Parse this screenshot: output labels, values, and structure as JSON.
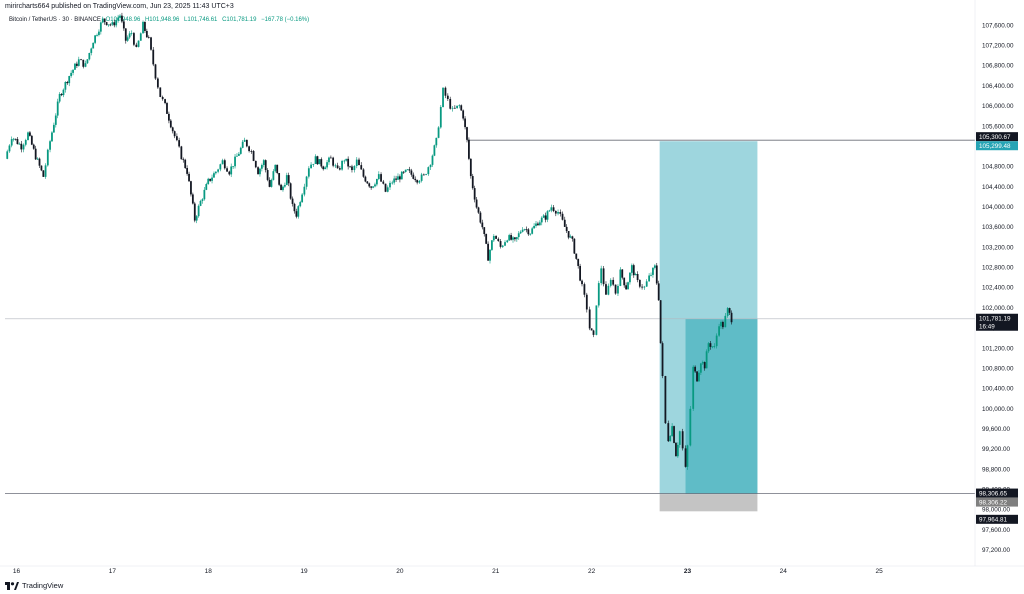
{
  "header": {
    "publisher": "mirircharts664 published on TradingView.com, Jun 23, 2025 11:43 UTC+3",
    "symbol": "Bitcoin / TetherUS · 30 · BINANCE",
    "open": "O101,948.96",
    "high": "H101,948.96",
    "low": "L101,746.61",
    "close": "C101,781.19",
    "change": "−167.78 (−0.16%)"
  },
  "footer": {
    "brand": "TradingView",
    "logo_icon": "tradingview-logo-icon"
  },
  "colors": {
    "up": "#089981",
    "down": "#131722",
    "target_zone": "#9ed6de",
    "target_zone_active": "#5fbcc7",
    "stop_zone": "#c4c4c4",
    "label_dark": "#131722",
    "label_teal": "#26a4b5",
    "label_gray": "#7f7f7f"
  },
  "chart_data": {
    "type": "candlestick",
    "title": "Bitcoin / TetherUS · 30 · BINANCE",
    "ylim": [
      97000,
      107900
    ],
    "yticks": [
      "107,600.00",
      "107,200.00",
      "106,800.00",
      "106,400.00",
      "106,000.00",
      "105,600.00",
      "105,200.00",
      "104,800.00",
      "104,400.00",
      "104,000.00",
      "103,600.00",
      "103,200.00",
      "102,800.00",
      "102,400.00",
      "102,000.00",
      "101,600.00",
      "101,200.00",
      "100,800.00",
      "100,400.00",
      "100,000.00",
      "99,600.00",
      "99,200.00",
      "98,800.00",
      "98,400.00",
      "98,000.00",
      "97,600.00",
      "97,200.00"
    ],
    "xticks": [
      "16",
      "17",
      "18",
      "19",
      "20",
      "21",
      "22",
      "23",
      "24",
      "25"
    ],
    "xlim": [
      15.88,
      26.0
    ],
    "grid": false,
    "price_path": [
      [
        15.88,
        104.95
      ],
      [
        15.95,
        105.4
      ],
      [
        16.05,
        105.2
      ],
      [
        16.12,
        105.45
      ],
      [
        16.2,
        105.0
      ],
      [
        16.28,
        104.6
      ],
      [
        16.35,
        105.3
      ],
      [
        16.45,
        106.2
      ],
      [
        16.55,
        106.6
      ],
      [
        16.65,
        106.9
      ],
      [
        16.72,
        106.8
      ],
      [
        16.8,
        107.3
      ],
      [
        16.9,
        107.7
      ],
      [
        17.0,
        107.6
      ],
      [
        17.08,
        107.8
      ],
      [
        17.14,
        107.3
      ],
      [
        17.2,
        107.45
      ],
      [
        17.25,
        107.1
      ],
      [
        17.32,
        107.6
      ],
      [
        17.38,
        107.3
      ],
      [
        17.45,
        106.6
      ],
      [
        17.5,
        106.2
      ],
      [
        17.55,
        106.0
      ],
      [
        17.65,
        105.4
      ],
      [
        17.72,
        105.0
      ],
      [
        17.78,
        104.7
      ],
      [
        17.84,
        104.0
      ],
      [
        17.86,
        103.75
      ],
      [
        17.92,
        104.1
      ],
      [
        18.0,
        104.5
      ],
      [
        18.08,
        104.7
      ],
      [
        18.15,
        104.9
      ],
      [
        18.22,
        104.7
      ],
      [
        18.3,
        105.0
      ],
      [
        18.38,
        105.3
      ],
      [
        18.45,
        105.1
      ],
      [
        18.52,
        104.7
      ],
      [
        18.58,
        104.9
      ],
      [
        18.64,
        104.4
      ],
      [
        18.7,
        104.8
      ],
      [
        18.76,
        104.3
      ],
      [
        18.82,
        104.6
      ],
      [
        18.88,
        104.0
      ],
      [
        18.92,
        103.85
      ],
      [
        18.98,
        104.3
      ],
      [
        19.05,
        104.8
      ],
      [
        19.12,
        104.95
      ],
      [
        19.2,
        104.8
      ],
      [
        19.28,
        104.95
      ],
      [
        19.35,
        104.7
      ],
      [
        19.42,
        104.95
      ],
      [
        19.5,
        104.7
      ],
      [
        19.55,
        104.9
      ],
      [
        19.62,
        104.6
      ],
      [
        19.7,
        104.4
      ],
      [
        19.78,
        104.6
      ],
      [
        19.85,
        104.3
      ],
      [
        19.92,
        104.5
      ],
      [
        20.0,
        104.6
      ],
      [
        20.08,
        104.7
      ],
      [
        20.18,
        104.55
      ],
      [
        20.25,
        104.6
      ],
      [
        20.32,
        104.9
      ],
      [
        20.38,
        105.3
      ],
      [
        20.45,
        106.3
      ],
      [
        20.5,
        106.1
      ],
      [
        20.55,
        105.9
      ],
      [
        20.62,
        106.0
      ],
      [
        20.66,
        105.8
      ],
      [
        20.7,
        105.3
      ],
      [
        20.74,
        104.6
      ],
      [
        20.8,
        104.0
      ],
      [
        20.86,
        103.6
      ],
      [
        20.92,
        103.0
      ],
      [
        20.98,
        103.45
      ],
      [
        21.05,
        103.2
      ],
      [
        21.12,
        103.4
      ],
      [
        21.2,
        103.3
      ],
      [
        21.28,
        103.6
      ],
      [
        21.36,
        103.5
      ],
      [
        21.44,
        103.7
      ],
      [
        21.52,
        103.8
      ],
      [
        21.58,
        104.0
      ],
      [
        21.65,
        103.9
      ],
      [
        21.72,
        103.6
      ],
      [
        21.8,
        103.3
      ],
      [
        21.86,
        102.8
      ],
      [
        21.9,
        102.4
      ],
      [
        21.95,
        102.0
      ],
      [
        21.98,
        101.6
      ],
      [
        22.02,
        101.4
      ],
      [
        22.05,
        102.1
      ],
      [
        22.1,
        102.8
      ],
      [
        22.15,
        102.2
      ],
      [
        22.2,
        102.6
      ],
      [
        22.25,
        102.3
      ],
      [
        22.3,
        102.7
      ],
      [
        22.36,
        102.4
      ],
      [
        22.42,
        102.8
      ],
      [
        22.48,
        102.5
      ],
      [
        22.55,
        102.4
      ],
      [
        22.6,
        102.6
      ],
      [
        22.66,
        102.8
      ],
      [
        22.7,
        102.2
      ],
      [
        22.72,
        101.3
      ],
      [
        22.74,
        100.6
      ],
      [
        22.77,
        99.7
      ],
      [
        22.8,
        99.4
      ],
      [
        22.84,
        99.65
      ],
      [
        22.88,
        99.1
      ],
      [
        22.92,
        99.55
      ],
      [
        22.95,
        99.2
      ],
      [
        22.98,
        98.8
      ],
      [
        23.0,
        99.25
      ],
      [
        23.03,
        100.0
      ],
      [
        23.06,
        100.8
      ],
      [
        23.1,
        100.6
      ],
      [
        23.14,
        100.95
      ],
      [
        23.18,
        100.85
      ],
      [
        23.22,
        101.3
      ],
      [
        23.28,
        101.2
      ],
      [
        23.33,
        101.7
      ],
      [
        23.37,
        101.65
      ],
      [
        23.42,
        101.95
      ],
      [
        23.46,
        101.78
      ]
    ],
    "horizontal_lines": [
      {
        "price": 105.32,
        "from": 20.7
      },
      {
        "price": 101.78,
        "from": 15.88
      },
      {
        "price": 98.32,
        "from": 15.88
      }
    ],
    "position_tool": {
      "side": "long",
      "x_start": 22.71,
      "x_end": 23.73,
      "entry_x": 22.98,
      "entry": "98,306.65",
      "target": "105,299.48",
      "stop": "97,964.81",
      "current": "101,781.19"
    },
    "price_labels": {
      "upper_dark": "105,300.67",
      "upper_teal": "105,299.48",
      "last_price": "101,781.19",
      "last_time": "16:49",
      "lower_dark": "98,306.65",
      "lower_gray": "98,306.22",
      "stop_dark": "97,964.81"
    }
  }
}
